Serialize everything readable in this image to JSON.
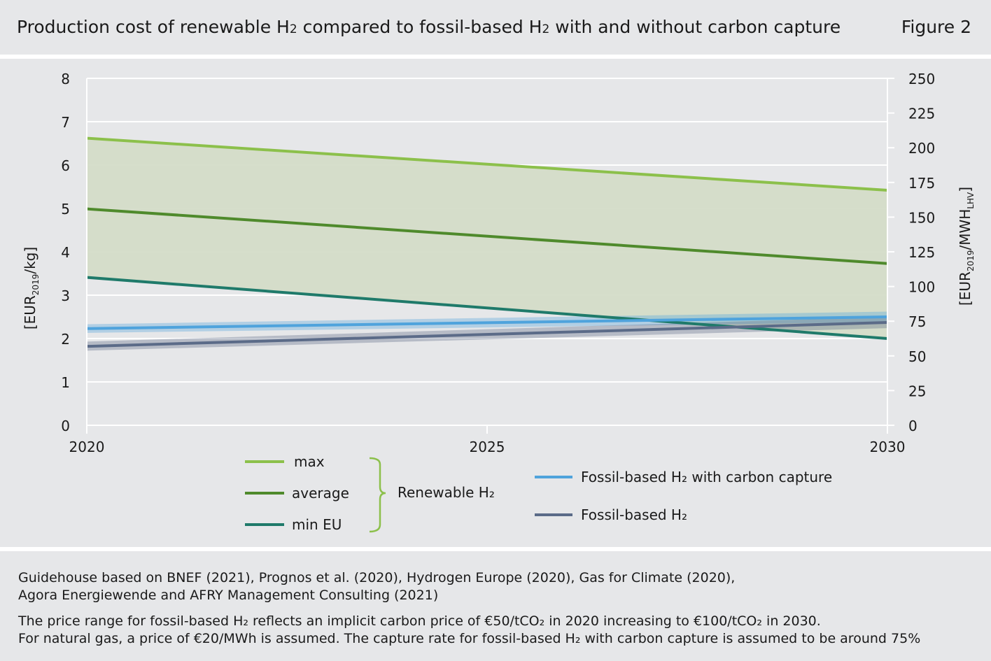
{
  "header": {
    "title_prefix": "Production cost of renewable H",
    "title_sub": "2",
    "title_suffix": " compared to fossil-based H",
    "title_sub2": "2",
    "title_end": " with and without carbon capture",
    "figure_label": "Figure 2"
  },
  "chart_data": {
    "type": "line",
    "x": [
      2020,
      2030
    ],
    "xticks": [
      "2020",
      "2025",
      "2030"
    ],
    "ylim_left": [
      0,
      8
    ],
    "yticks_left": [
      "0",
      "1",
      "2",
      "3",
      "4",
      "5",
      "6",
      "7",
      "8"
    ],
    "ylim_right": [
      0,
      250
    ],
    "yticks_right": [
      "0",
      "25",
      "50",
      "75",
      "100",
      "125",
      "150",
      "175",
      "200",
      "225",
      "250"
    ],
    "ylabel_left": {
      "main": "[EUR",
      "sub": "2019",
      "end": "/kg]"
    },
    "ylabel_right": {
      "main": "[EUR",
      "sub": "2019",
      "mid": "/MWH",
      "sub2": "LHV",
      "end": "]"
    },
    "grid": true,
    "series": [
      {
        "name": "max",
        "values": [
          6.62,
          5.42
        ],
        "color": "#8cc04b"
      },
      {
        "name": "average",
        "values": [
          4.99,
          3.73
        ],
        "color": "#4f8a2c"
      },
      {
        "name": "min EU",
        "values": [
          3.41,
          2.0
        ],
        "color": "#1f7a6a"
      },
      {
        "name": "Fossil-based H₂ with carbon capture",
        "values": [
          2.23,
          2.5
        ],
        "band": [
          [
            2.13,
            2.33
          ],
          [
            2.38,
            2.62
          ]
        ],
        "color": "#4fa3dc"
      },
      {
        "name": "Fossil-based H₂",
        "values": [
          1.82,
          2.37
        ],
        "band": [
          [
            1.72,
            1.93
          ],
          [
            2.24,
            2.5
          ]
        ],
        "color": "#5b6b88"
      }
    ],
    "renewable_band": {
      "color": "#d4dcc8"
    },
    "legend": {
      "group_label": "Renewable H₂",
      "items": [
        "max",
        "average",
        "min EU"
      ],
      "fossil_items": [
        "Fossil-based H₂ with carbon capture",
        "Fossil-based H₂"
      ],
      "placement": "bottom"
    }
  },
  "footer": {
    "source_line1": "Guidehouse based on BNEF (2021), Prognos et al. (2020), Hydrogen Europe (2020), Gas for Climate (2020),",
    "source_line2": "Agora Energiewende and AFRY Management Consulting (2021)",
    "note_line1": "The price range for fossil-based H₂ reflects an implicit carbon price of €50/tCO₂ in 2020 increasing to €100/tCO₂ in 2030.",
    "note_line2": "For natural gas, a price of €20/MWh is assumed. The capture rate for fossil-based H₂ with carbon capture is assumed to be around 75%"
  }
}
